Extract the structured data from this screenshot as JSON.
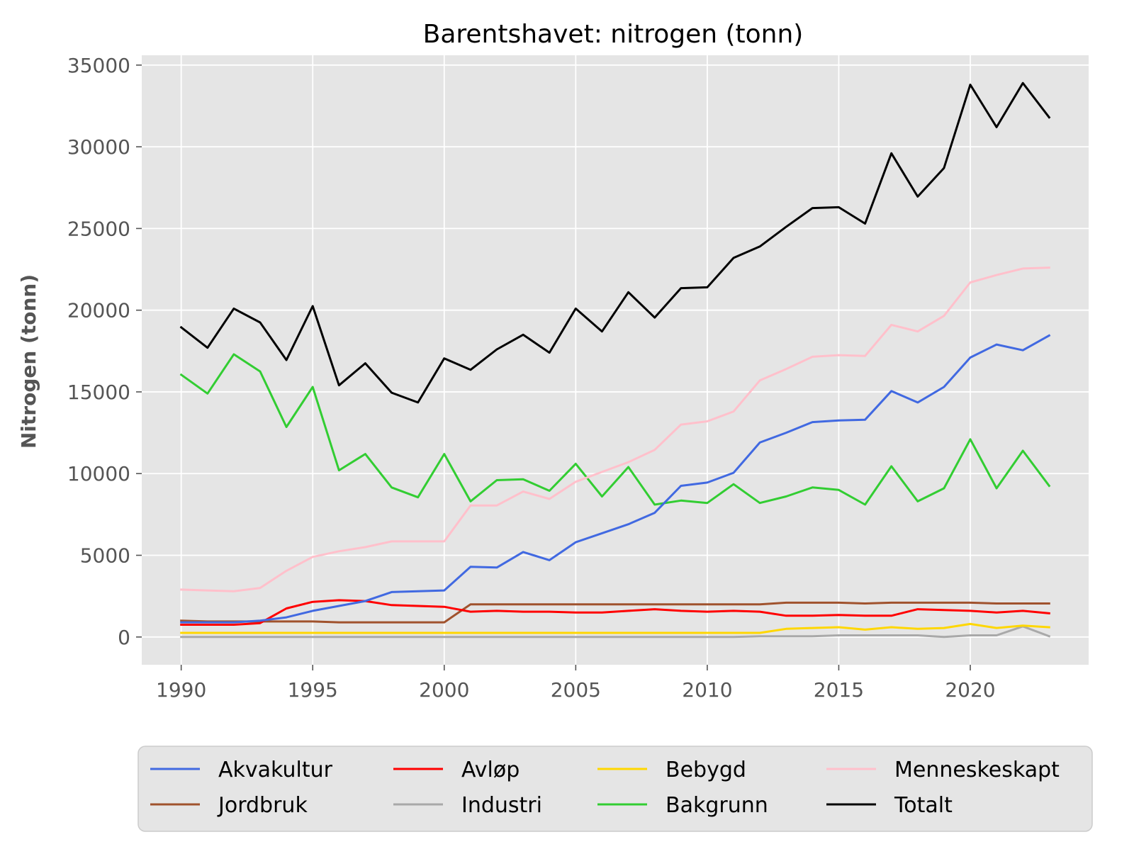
{
  "chart_data": {
    "type": "line",
    "title": "Barentshavet: nitrogen (tonn)",
    "xlabel": "",
    "ylabel": "Nitrogen (tonn)",
    "xlim": [
      1988.5,
      2024.5
    ],
    "ylim": [
      -1700,
      35600
    ],
    "xticks": [
      "1990",
      "1995",
      "2000",
      "2005",
      "2010",
      "2015",
      "2020"
    ],
    "yticks": [
      "0",
      "5000",
      "10000",
      "15000",
      "20000",
      "25000",
      "30000",
      "35000"
    ],
    "grid": true,
    "legend_position": "bottom",
    "legend_columns": 4,
    "x": [
      1990,
      1991,
      1992,
      1993,
      1994,
      1995,
      1996,
      1997,
      1998,
      1999,
      2000,
      2001,
      2002,
      2003,
      2004,
      2005,
      2006,
      2007,
      2008,
      2009,
      2010,
      2011,
      2012,
      2013,
      2014,
      2015,
      2016,
      2017,
      2018,
      2019,
      2020,
      2021,
      2022,
      2023
    ],
    "series": [
      {
        "name": "Akvakultur",
        "color": "#4169e1",
        "values": [
          900,
          900,
          900,
          1000,
          1200,
          1600,
          1900,
          2200,
          2750,
          2800,
          2850,
          4300,
          4250,
          5200,
          4700,
          5800,
          6350,
          6900,
          7600,
          9250,
          9450,
          10050,
          11900,
          12500,
          13150,
          13250,
          13300,
          15050,
          14350,
          15300,
          17100,
          17900,
          17550,
          18450
        ]
      },
      {
        "name": "Avløp",
        "color": "#ff0000",
        "values": [
          750,
          750,
          750,
          850,
          1750,
          2150,
          2250,
          2200,
          1950,
          1900,
          1850,
          1550,
          1600,
          1550,
          1550,
          1500,
          1500,
          1600,
          1700,
          1600,
          1550,
          1600,
          1550,
          1300,
          1300,
          1350,
          1300,
          1300,
          1700,
          1650,
          1600,
          1500,
          1600,
          1450
        ]
      },
      {
        "name": "Bebygd",
        "color": "#ffd700",
        "values": [
          250,
          250,
          250,
          250,
          250,
          250,
          250,
          250,
          250,
          250,
          250,
          250,
          250,
          250,
          250,
          250,
          250,
          250,
          250,
          250,
          250,
          250,
          250,
          500,
          550,
          600,
          450,
          600,
          500,
          550,
          800,
          550,
          700,
          600
        ]
      },
      {
        "name": "Menneskeskapt",
        "color": "#ffc0cb",
        "values": [
          2900,
          2850,
          2800,
          3000,
          4050,
          4900,
          5250,
          5500,
          5850,
          5850,
          5850,
          8050,
          8050,
          8900,
          8450,
          9500,
          10100,
          10700,
          11450,
          13000,
          13200,
          13800,
          15700,
          16400,
          17150,
          17250,
          17200,
          19100,
          18700,
          19650,
          21700,
          22150,
          22550,
          22600
        ]
      },
      {
        "name": "Jordbruk",
        "color": "#a0522d",
        "values": [
          1000,
          950,
          950,
          950,
          950,
          950,
          900,
          900,
          900,
          900,
          900,
          2000,
          2000,
          2000,
          2000,
          2000,
          2000,
          2000,
          2000,
          2000,
          2000,
          2000,
          2000,
          2100,
          2100,
          2100,
          2050,
          2100,
          2100,
          2100,
          2100,
          2050,
          2050,
          2050
        ]
      },
      {
        "name": "Industri",
        "color": "#a9a9a9",
        "values": [
          0,
          0,
          0,
          0,
          0,
          0,
          0,
          0,
          0,
          0,
          0,
          0,
          0,
          0,
          0,
          0,
          0,
          0,
          0,
          0,
          0,
          0,
          50,
          50,
          50,
          100,
          100,
          100,
          100,
          0,
          100,
          100,
          650,
          50
        ]
      },
      {
        "name": "Bakgrunn",
        "color": "#32cd32",
        "values": [
          16050,
          14900,
          17300,
          16250,
          12850,
          15300,
          10200,
          11200,
          9150,
          8550,
          11200,
          8300,
          9600,
          9650,
          8950,
          10600,
          8600,
          10400,
          8100,
          8350,
          8200,
          9350,
          8200,
          8600,
          9150,
          9000,
          8100,
          10450,
          8300,
          9100,
          12100,
          9100,
          11400,
          9250
        ]
      },
      {
        "name": "Totalt",
        "color": "#000000",
        "values": [
          18950,
          17700,
          20100,
          19250,
          16950,
          20250,
          15400,
          16750,
          14950,
          14350,
          17050,
          16350,
          17600,
          18500,
          17400,
          20100,
          18700,
          21100,
          19550,
          21350,
          21400,
          23200,
          23900,
          25100,
          26250,
          26300,
          25300,
          29600,
          26950,
          28700,
          33800,
          31200,
          33900,
          31800
        ]
      }
    ]
  }
}
